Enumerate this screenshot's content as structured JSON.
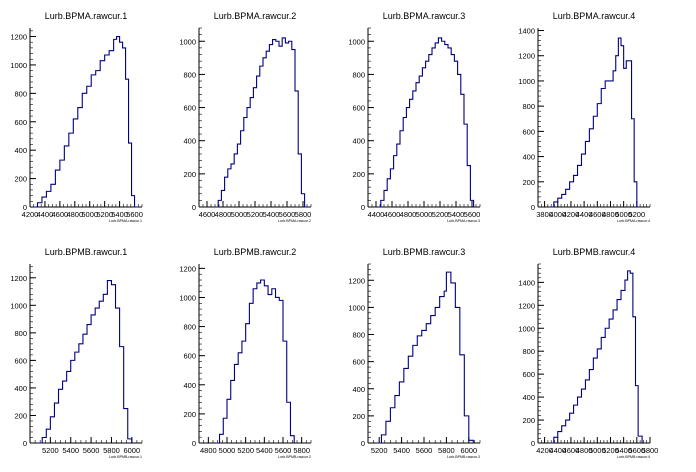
{
  "colors": {
    "line": "#000080",
    "axis": "#000000",
    "background": "#ffffff",
    "frame": "#ffffff"
  },
  "chart_data": [
    {
      "type": "histogram",
      "title": "Lurb.BPMA.rawcur.1",
      "xlabel": "Lurb.BPMA.rawcur.1",
      "xlim": [
        4200,
        5700
      ],
      "ylim": [
        0,
        1260
      ],
      "xticks": [
        "4200",
        "4400",
        "4600",
        "4800",
        "5000",
        "5200",
        "5400",
        "5600"
      ],
      "yticks": [
        "0",
        "200",
        "400",
        "600",
        "800",
        "1000",
        "1200"
      ],
      "x": [
        4240,
        4300,
        4360,
        4420,
        4480,
        4540,
        4600,
        4660,
        4720,
        4780,
        4840,
        4900,
        4960,
        5020,
        5080,
        5140,
        5200,
        5260,
        5320,
        5360,
        5400,
        5440,
        5480,
        5520,
        5560,
        5600
      ],
      "values": [
        0,
        30,
        70,
        110,
        160,
        260,
        330,
        430,
        520,
        620,
        700,
        800,
        850,
        930,
        960,
        1030,
        1070,
        1100,
        1180,
        1200,
        1160,
        1120,
        900,
        450,
        80,
        0
      ]
    },
    {
      "type": "histogram",
      "title": "Lurb.BPMA.rawcur.2",
      "xlabel": "Lurb.BPMA.rawcur.2",
      "xlim": [
        4500,
        5900
      ],
      "ylim": [
        0,
        1080
      ],
      "xticks": [
        "4600",
        "4800",
        "5000",
        "5200",
        "5400",
        "5600",
        "5800"
      ],
      "yticks": [
        "0",
        "200",
        "400",
        "600",
        "800",
        "1000"
      ],
      "x": [
        4700,
        4740,
        4780,
        4820,
        4860,
        4900,
        4940,
        4980,
        5020,
        5060,
        5100,
        5140,
        5180,
        5220,
        5260,
        5300,
        5340,
        5380,
        5420,
        5460,
        5500,
        5540,
        5580,
        5620,
        5660,
        5700,
        5740,
        5780,
        5820
      ],
      "values": [
        0,
        40,
        100,
        180,
        230,
        260,
        320,
        380,
        460,
        540,
        600,
        660,
        720,
        790,
        850,
        900,
        940,
        980,
        1010,
        1000,
        970,
        1020,
        990,
        1000,
        950,
        700,
        320,
        80,
        0
      ]
    },
    {
      "type": "histogram",
      "title": "Lurb.BPMA.rawcur.3",
      "xlabel": "Lurb.BPMA.rawcur.3",
      "xlim": [
        4300,
        5700
      ],
      "ylim": [
        0,
        1080
      ],
      "xticks": [
        "4400",
        "4600",
        "4800",
        "5000",
        "5200",
        "5400",
        "5600"
      ],
      "yticks": [
        "0",
        "200",
        "400",
        "600",
        "800",
        "1000"
      ],
      "x": [
        4420,
        4460,
        4500,
        4540,
        4580,
        4620,
        4660,
        4700,
        4740,
        4780,
        4820,
        4860,
        4900,
        4940,
        4980,
        5020,
        5060,
        5100,
        5140,
        5180,
        5220,
        5260,
        5300,
        5340,
        5380,
        5420,
        5460,
        5500,
        5540,
        5580
      ],
      "values": [
        0,
        40,
        100,
        170,
        230,
        310,
        380,
        460,
        540,
        600,
        650,
        700,
        750,
        790,
        840,
        880,
        920,
        960,
        990,
        1020,
        1000,
        980,
        960,
        920,
        880,
        800,
        680,
        500,
        250,
        40
      ]
    },
    {
      "type": "histogram",
      "title": "Lurb.BPMA.rawcur.4",
      "xlabel": "Lurb.BPMA.rawcur.4",
      "xlim": [
        3700,
        5400
      ],
      "ylim": [
        0,
        1420
      ],
      "xticks": [
        "3800",
        "4000",
        "4200",
        "4400",
        "4600",
        "4800",
        "5000",
        "5200"
      ],
      "yticks": [
        "0",
        "200",
        "400",
        "600",
        "800",
        "1000",
        "1200",
        "1400"
      ],
      "x": [
        3880,
        3940,
        4000,
        4060,
        4120,
        4180,
        4240,
        4300,
        4360,
        4420,
        4480,
        4540,
        4600,
        4660,
        4720,
        4780,
        4840,
        4880,
        4920,
        4960,
        5000,
        5040,
        5080,
        5120,
        5160,
        5200
      ],
      "values": [
        0,
        40,
        70,
        100,
        140,
        200,
        250,
        330,
        420,
        520,
        620,
        720,
        820,
        940,
        1000,
        1000,
        1080,
        1200,
        1340,
        1280,
        1100,
        1160,
        1160,
        700,
        200,
        0
      ]
    },
    {
      "type": "histogram",
      "title": "Lurb.BPMB.rawcur.1",
      "xlabel": "Lurb.BPMB.rawcur.1",
      "xlim": [
        5000,
        6100
      ],
      "ylim": [
        0,
        1300
      ],
      "xticks": [
        "5200",
        "5400",
        "5600",
        "5800",
        "6000"
      ],
      "yticks": [
        "0",
        "200",
        "400",
        "600",
        "800",
        "1000",
        "1200"
      ],
      "x": [
        5080,
        5120,
        5160,
        5200,
        5240,
        5280,
        5320,
        5360,
        5400,
        5440,
        5480,
        5520,
        5560,
        5600,
        5640,
        5680,
        5720,
        5760,
        5800,
        5840,
        5880,
        5920,
        5960
      ],
      "values": [
        0,
        40,
        100,
        190,
        290,
        390,
        450,
        520,
        600,
        660,
        720,
        790,
        860,
        930,
        980,
        1030,
        1080,
        1180,
        1150,
        980,
        700,
        250,
        30
      ]
    },
    {
      "type": "histogram",
      "title": "Lurb.BPMB.rawcur.2",
      "xlabel": "Lurb.BPMB.rawcur.2",
      "xlim": [
        4700,
        5900
      ],
      "ylim": [
        0,
        1230
      ],
      "xticks": [
        "4800",
        "5000",
        "5200",
        "5400",
        "5600",
        "5800"
      ],
      "yticks": [
        "0",
        "200",
        "400",
        "600",
        "800",
        "1000",
        "1200"
      ],
      "x": [
        4880,
        4920,
        4960,
        5000,
        5040,
        5080,
        5120,
        5160,
        5200,
        5240,
        5280,
        5320,
        5360,
        5400,
        5440,
        5480,
        5520,
        5560,
        5600,
        5640,
        5680
      ],
      "values": [
        0,
        60,
        170,
        300,
        430,
        540,
        620,
        700,
        820,
        960,
        1060,
        1100,
        1120,
        1080,
        1020,
        1060,
        1000,
        980,
        700,
        280,
        50
      ]
    },
    {
      "type": "histogram",
      "title": "Lurb.BPMB.rawcur.3",
      "xlabel": "Lurb.BPMB.rawcur.3",
      "xlim": [
        5100,
        6100
      ],
      "ylim": [
        0,
        1320
      ],
      "xticks": [
        "5200",
        "5400",
        "5600",
        "5800",
        "6000"
      ],
      "yticks": [
        "0",
        "200",
        "400",
        "600",
        "800",
        "1000",
        "1200"
      ],
      "x": [
        5180,
        5220,
        5260,
        5300,
        5340,
        5380,
        5420,
        5460,
        5500,
        5540,
        5580,
        5620,
        5660,
        5700,
        5740,
        5780,
        5800,
        5840,
        5880,
        5920,
        5960,
        6000
      ],
      "values": [
        0,
        60,
        160,
        260,
        350,
        450,
        550,
        640,
        720,
        790,
        830,
        880,
        940,
        1000,
        1080,
        1120,
        1260,
        1180,
        1000,
        650,
        200,
        20
      ]
    },
    {
      "type": "histogram",
      "title": "Lurb.BPMB.rawcur.4",
      "xlabel": "Lurb.BPMB.rawcur.4",
      "xlim": [
        4100,
        5800
      ],
      "ylim": [
        0,
        1560
      ],
      "xticks": [
        "4200",
        "4400",
        "4600",
        "4800",
        "5000",
        "5200",
        "5400",
        "5600",
        "5800"
      ],
      "yticks": [
        "0",
        "200",
        "400",
        "600",
        "800",
        "1000",
        "1200",
        "1400"
      ],
      "x": [
        4280,
        4340,
        4400,
        4460,
        4520,
        4580,
        4640,
        4700,
        4760,
        4820,
        4880,
        4940,
        5000,
        5060,
        5120,
        5180,
        5240,
        5300,
        5360,
        5420,
        5460,
        5500,
        5540,
        5580,
        5620
      ],
      "values": [
        0,
        50,
        100,
        150,
        200,
        260,
        330,
        400,
        470,
        550,
        640,
        740,
        820,
        920,
        1000,
        1080,
        1160,
        1250,
        1330,
        1420,
        1500,
        1480,
        1100,
        500,
        60
      ]
    }
  ]
}
